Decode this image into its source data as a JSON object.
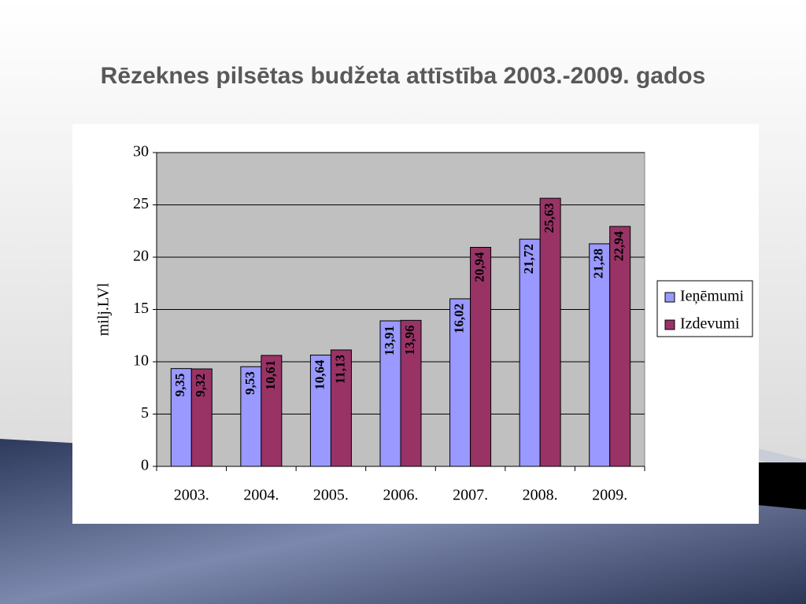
{
  "chart_data": {
    "type": "bar",
    "title": "Rēzeknes pilsētas budžeta attīstība 2003.-2009. gados",
    "y_label": "milj.LVl",
    "categories": [
      "2003.",
      "2004.",
      "2005.",
      "2006.",
      "2007.",
      "2008.",
      "2009."
    ],
    "series": [
      {
        "name": "Ieņēmumi",
        "color": "#9999ff",
        "values": [
          9.35,
          9.53,
          10.64,
          13.91,
          16.02,
          21.72,
          21.28
        ],
        "value_labels": [
          "9,35",
          "9,53",
          "10,64",
          "13,91",
          "16,02",
          "21,72",
          "21,28"
        ]
      },
      {
        "name": "Izdevumi",
        "color": "#993366",
        "values": [
          9.32,
          10.61,
          11.13,
          13.96,
          20.94,
          25.63,
          22.94
        ],
        "value_labels": [
          "9,32",
          "10,61",
          "11,13",
          "13,96",
          "20,94",
          "25,63",
          "22,94"
        ]
      }
    ],
    "ylim": [
      0,
      30
    ],
    "yticks": [
      0,
      5,
      10,
      15,
      20,
      25,
      30
    ],
    "grid": true,
    "legend": "right"
  }
}
